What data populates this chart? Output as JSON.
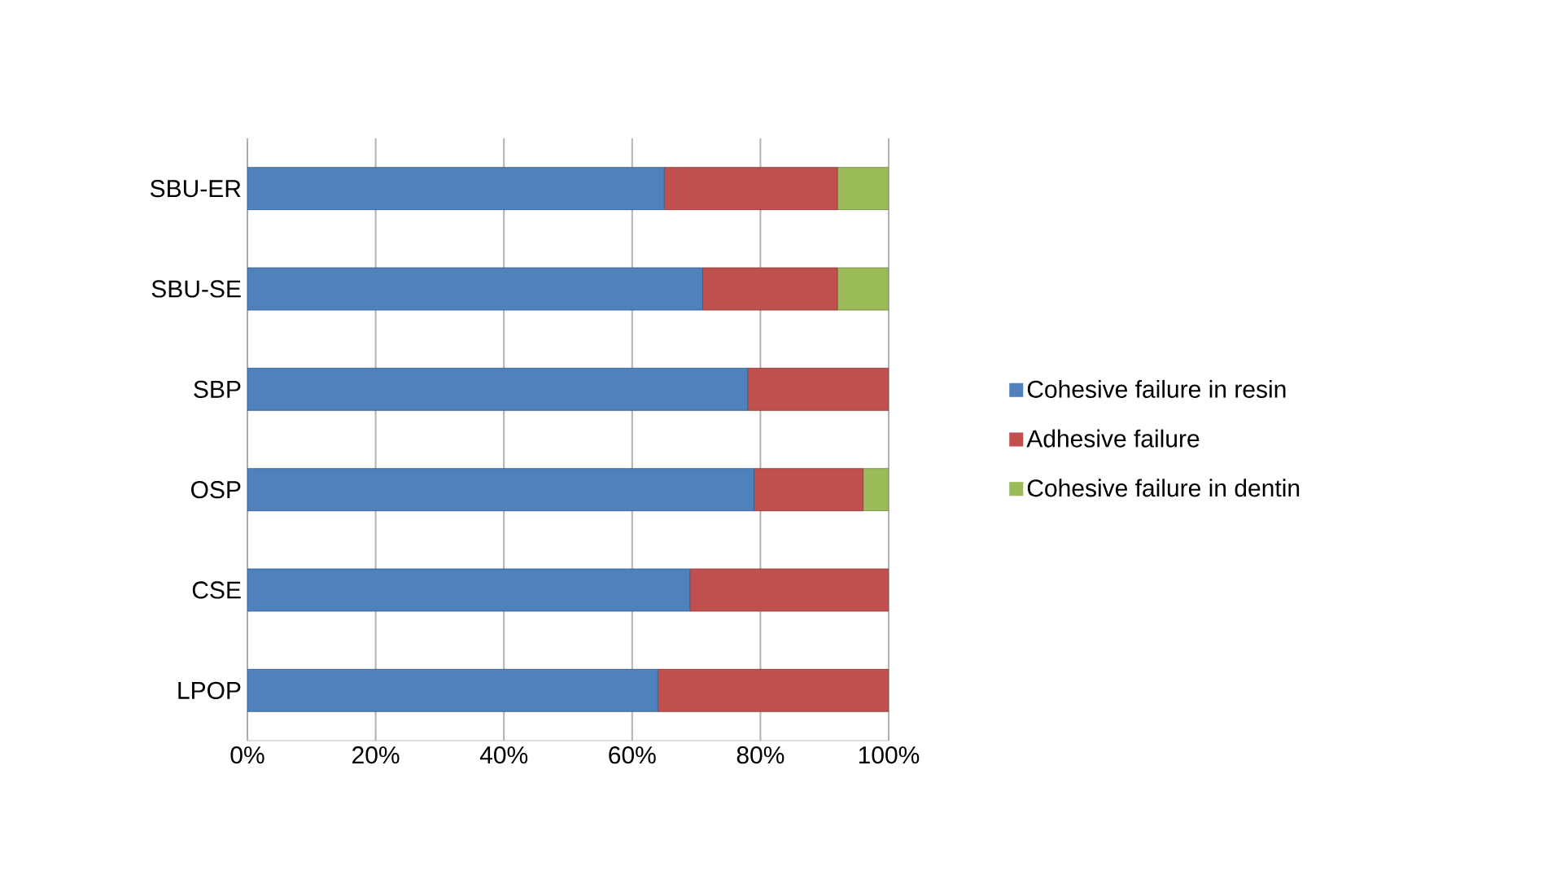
{
  "chart_data": {
    "type": "bar",
    "orientation": "horizontal",
    "stacked": true,
    "categories": [
      "SBU-ER",
      "SBU-SE",
      "SBP",
      "OSP",
      "CSE",
      "LPOP"
    ],
    "series": [
      {
        "name": "Cohesive failure in resin",
        "color": "#4f81bd",
        "values": [
          65,
          71,
          78,
          79,
          69,
          64
        ]
      },
      {
        "name": "Adhesive failure",
        "color": "#c0504d",
        "values": [
          27,
          21,
          22,
          17,
          31,
          36
        ]
      },
      {
        "name": "Cohesive failure in dentin",
        "color": "#9bbb59",
        "values": [
          8,
          8,
          0,
          4,
          0,
          0
        ]
      }
    ],
    "xlim": [
      0,
      100
    ],
    "xticks": [
      {
        "value": 0,
        "label": "0%"
      },
      {
        "value": 20,
        "label": "20%"
      },
      {
        "value": 40,
        "label": "40%"
      },
      {
        "value": 60,
        "label": "60%"
      },
      {
        "value": 80,
        "label": "80%"
      },
      {
        "value": 100,
        "label": "100%"
      }
    ],
    "grid": "x",
    "legend": "right"
  }
}
